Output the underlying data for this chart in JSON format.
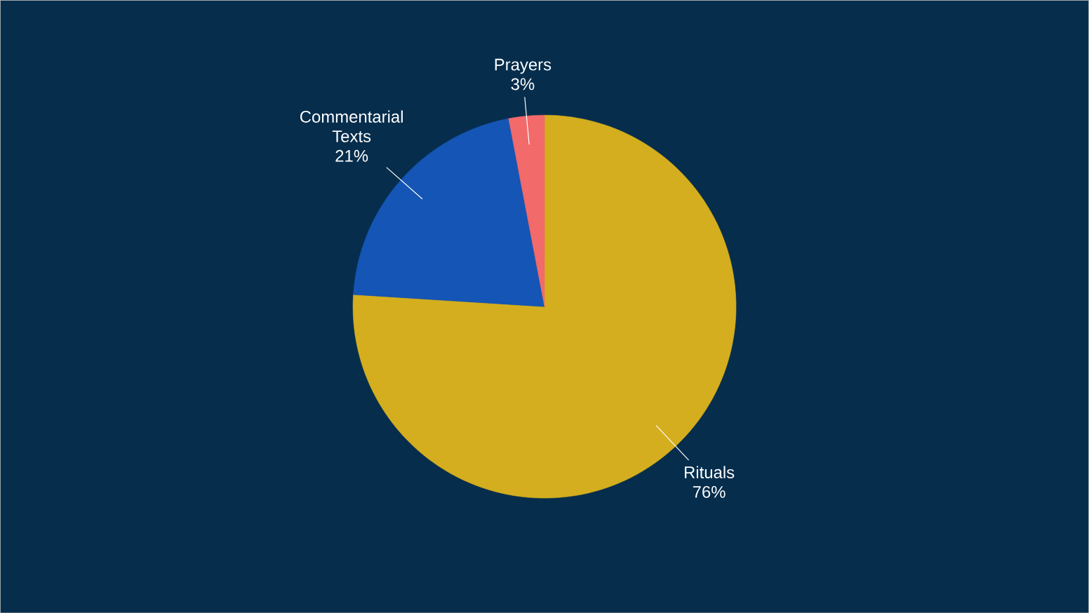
{
  "chart_data": {
    "type": "pie",
    "categories": [
      "Rituals",
      "Commentarial Texts",
      "Prayers"
    ],
    "values": [
      76,
      21,
      3
    ],
    "colors": [
      "#d4ae1e",
      "#1455b5",
      "#f26a6a"
    ],
    "value_labels": [
      "76%",
      "21%",
      "3%"
    ]
  }
}
